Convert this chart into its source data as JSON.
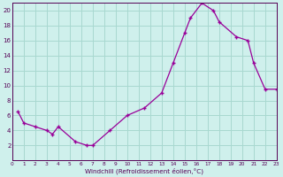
{
  "xlabel": "Windchill (Refroidissement éolien,°C)",
  "bg_color": "#cff0ec",
  "grid_color": "#a8d8d0",
  "line_color": "#990099",
  "x_windchill": [
    0.5,
    1.0,
    2.0,
    3.0,
    3.5,
    4.0,
    5.5,
    6.5,
    7.0,
    8.5,
    10.0,
    11.5,
    13.0,
    14.0,
    15.0,
    15.5,
    16.5,
    17.5,
    18.0,
    19.5,
    20.5,
    21.0,
    22.0,
    23.0
  ],
  "y_actual": [
    6.5,
    5.0,
    4.5,
    4.0,
    3.5,
    4.5,
    2.5,
    2.0,
    2.0,
    4.0,
    6.0,
    7.0,
    9.0,
    13.0,
    17.0,
    19.0,
    21.0,
    20.0,
    18.5,
    16.5,
    16.0,
    13.0,
    9.5,
    9.5
  ],
  "xlim": [
    0,
    23
  ],
  "ylim": [
    0,
    21
  ],
  "xticks": [
    0,
    1,
    2,
    3,
    4,
    5,
    6,
    7,
    8,
    9,
    10,
    11,
    12,
    13,
    14,
    15,
    16,
    17,
    18,
    19,
    20,
    21,
    22,
    23
  ],
  "yticks": [
    2,
    4,
    6,
    8,
    10,
    12,
    14,
    16,
    18,
    20
  ]
}
